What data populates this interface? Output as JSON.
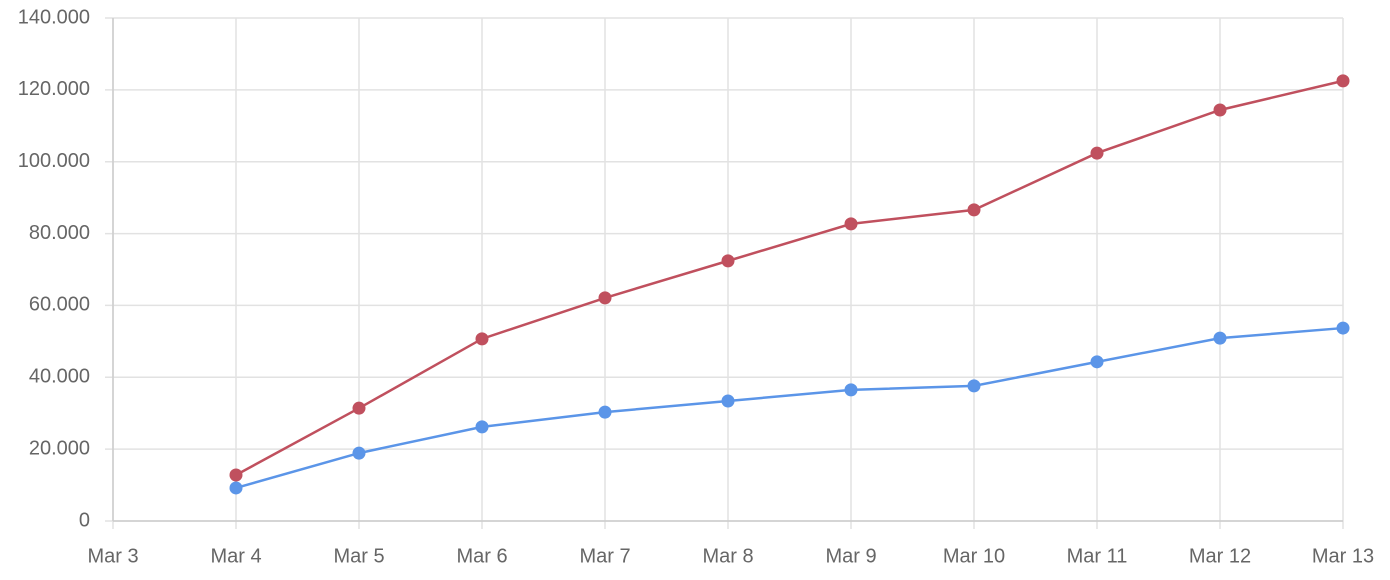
{
  "chart_data": {
    "type": "line",
    "categories": [
      "Mar 3",
      "Mar 4",
      "Mar 5",
      "Mar 6",
      "Mar 7",
      "Mar 8",
      "Mar 9",
      "Mar 10",
      "Mar 11",
      "Mar 12",
      "Mar 13"
    ],
    "series": [
      {
        "color": "#c0505e",
        "values": [
          null,
          12800,
          31400,
          50700,
          62100,
          72400,
          82700,
          86600,
          102400,
          114400,
          122500
        ]
      },
      {
        "color": "#5b95e8",
        "values": [
          null,
          9200,
          18900,
          26200,
          30300,
          33400,
          36500,
          37600,
          44300,
          50900,
          53700
        ]
      }
    ],
    "ylim": [
      0,
      140000
    ],
    "yticks": [
      0,
      {
        "value": 20000,
        "label": "20.000"
      },
      {
        "value": 40000,
        "label": "40.000"
      },
      {
        "value": 60000,
        "label": "60.000"
      },
      {
        "value": 80000,
        "label": "80.000"
      },
      {
        "value": 100000,
        "label": "100.000"
      },
      {
        "value": 120000,
        "label": "120.000"
      },
      {
        "value": 140000,
        "label": "140.000"
      }
    ],
    "grid": true
  }
}
